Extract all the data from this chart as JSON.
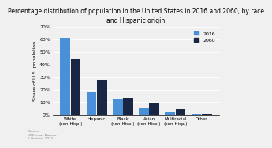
{
  "title": "Percentage distribution of population in the United States in 2016 and 2060, by race\nand Hispanic origin",
  "ylabel": "Share of U.S. population",
  "categories": [
    "White\n(non-Hisp.)",
    "Hispanic",
    "Black\n(non-Hisp.)",
    "Asian\n(non-Hisp.)",
    "Multiracial\n(non-Hisp.)",
    "Other"
  ],
  "values_2016": [
    61.3,
    17.8,
    12.4,
    5.7,
    2.5,
    0.4
  ],
  "values_2060": [
    44.3,
    27.5,
    13.6,
    9.1,
    4.9,
    0.6
  ],
  "color_2016": "#4A90D9",
  "color_2060": "#1A2744",
  "ylim": [
    0,
    70
  ],
  "yticks": [
    0,
    10,
    20,
    30,
    40,
    50,
    60,
    70
  ],
  "ytick_labels": [
    "0%",
    "10%",
    "20%",
    "30%",
    "40%",
    "50%",
    "60%",
    "70%"
  ],
  "source_text": "Source:\nUSCensus Bureau\n5 October 2022",
  "title_fontsize": 5.5,
  "label_fontsize": 4.5,
  "tick_fontsize": 4.5
}
